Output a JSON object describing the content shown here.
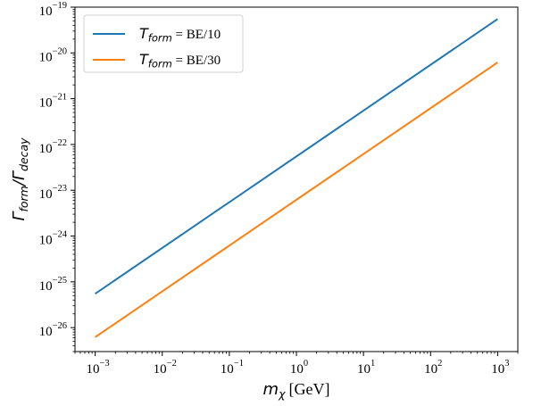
{
  "chart_data": {
    "type": "line",
    "xscale": "log",
    "yscale": "log",
    "xlim": [
      0.0005,
      2000
    ],
    "ylim": [
      3e-27,
      1e-19
    ],
    "xticks": [
      0.001,
      0.01,
      0.1,
      1,
      10,
      100,
      1000
    ],
    "yticks": [
      1e-26,
      1e-25,
      1e-24,
      1e-23,
      1e-22,
      1e-21,
      1e-20,
      1e-19
    ],
    "xlabel": {
      "symbol": "m",
      "subscript": "χ",
      "unit": "[GeV]"
    },
    "ylabel": {
      "numerator_symbol": "Γ",
      "numerator_sub": "form",
      "slash": "/",
      "denominator_symbol": "Γ",
      "denominator_sub": "decay"
    },
    "legend": {
      "placement": "top-left",
      "entries": [
        {
          "symbol": "T",
          "subscript": "form",
          "text": " = BE/10"
        },
        {
          "symbol": "T",
          "subscript": "form",
          "text": " = BE/30"
        }
      ]
    },
    "grid": false,
    "series": [
      {
        "name": "T_form = BE/10",
        "color": "#1f77b4",
        "x": [
          0.001,
          1000
        ],
        "y": [
          5.5e-26,
          5.5e-20
        ]
      },
      {
        "name": "T_form = BE/30",
        "color": "#ff7f0e",
        "x": [
          0.001,
          1000
        ],
        "y": [
          6.2e-27,
          6.2e-21
        ]
      }
    ]
  }
}
